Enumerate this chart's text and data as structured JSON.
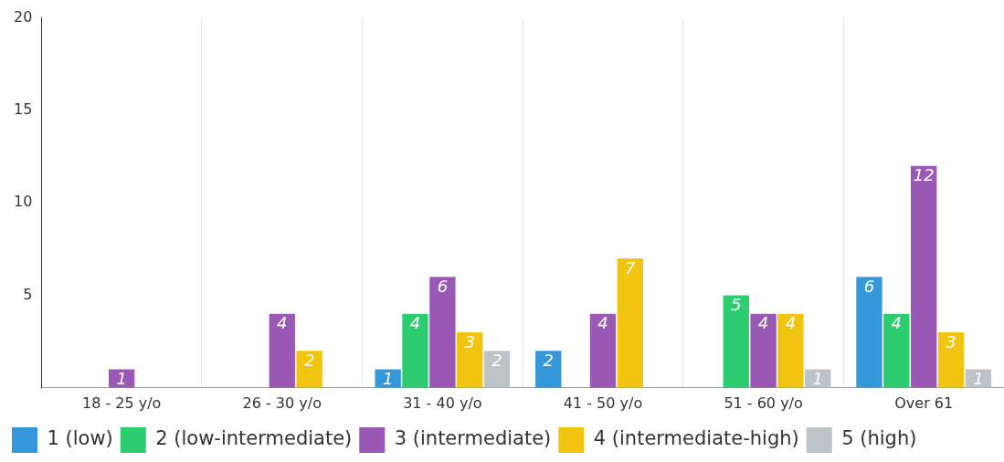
{
  "chart_data": {
    "type": "bar",
    "categories": [
      "18 - 25 y/o",
      "26 - 30 y/o",
      "31 - 40 y/o",
      "41 - 50 y/o",
      "51 - 60 y/o",
      "Over 61"
    ],
    "series": [
      {
        "name": "1 (low)",
        "color": "#3498db",
        "values": [
          0,
          0,
          1,
          2,
          0,
          6
        ],
        "value_labels": [
          null,
          null,
          "1",
          "2",
          null,
          "6"
        ]
      },
      {
        "name": "2 (low-intermediate)",
        "color": "#2ecc71",
        "values": [
          0,
          0,
          4,
          0,
          5,
          4
        ],
        "value_labels": [
          null,
          null,
          "4",
          null,
          "5",
          "4"
        ]
      },
      {
        "name": "3 (intermediate)",
        "color": "#9b59b6",
        "values": [
          1,
          4,
          6,
          4,
          4,
          12
        ],
        "value_labels": [
          "1",
          "4",
          "6",
          "4",
          "4",
          "12"
        ]
      },
      {
        "name": "4 (intermediate-high)",
        "color": "#f1c40f",
        "values": [
          0,
          2,
          3,
          7,
          4,
          3
        ],
        "value_labels": [
          null,
          "2",
          "3",
          "7",
          "4",
          "3"
        ]
      },
      {
        "name": "5 (high)",
        "color": "#bdc3c7",
        "values": [
          0,
          0,
          2,
          0,
          1,
          1
        ],
        "value_labels": [
          null,
          null,
          "2",
          null,
          "1",
          "1"
        ]
      }
    ],
    "ylim": [
      0,
      20
    ],
    "yticks": [
      5,
      10,
      15,
      20
    ],
    "grid": "x",
    "legend": "bottom"
  }
}
